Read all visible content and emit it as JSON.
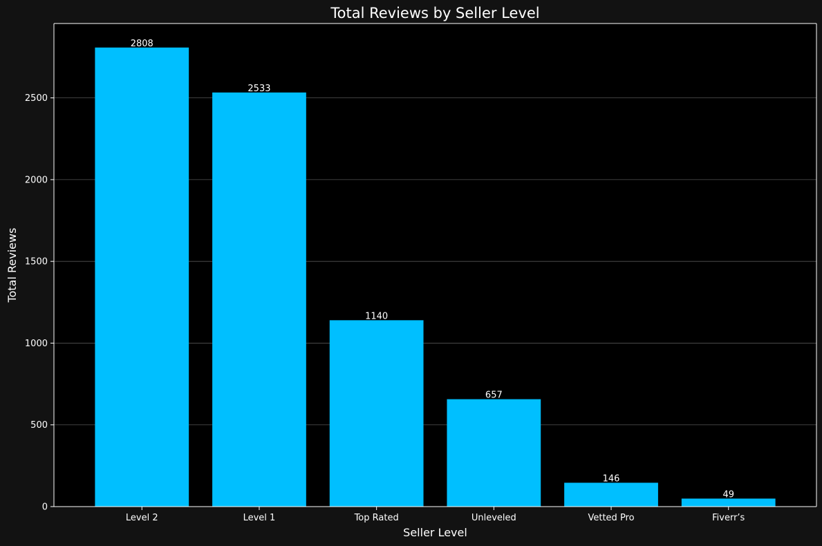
{
  "chart_data": {
    "type": "bar",
    "title": "Total Reviews by Seller Level",
    "xlabel": "Seller Level",
    "ylabel": "Total Reviews",
    "categories": [
      "Level 2",
      "Level 1",
      "Top Rated",
      "Unleveled",
      "Vetted Pro",
      "Fiverr’s"
    ],
    "values": [
      2808,
      2533,
      1140,
      657,
      146,
      49
    ],
    "data_labels": [
      "2808",
      "2533",
      "1140",
      "657",
      "146",
      "49"
    ],
    "ylim": [
      0,
      2955
    ],
    "yticks": [
      0,
      500,
      1000,
      1500,
      2000,
      2500
    ],
    "ytick_labels": [
      "0",
      "500",
      "1000",
      "1500",
      "2000",
      "2500"
    ],
    "grid": "horizontal",
    "colors": {
      "bar": "#00bfff",
      "plot_background": "#000000",
      "figure_background": "#121212",
      "text": "#ffffff",
      "grid": "#555555",
      "axis": "#ffffff"
    }
  }
}
